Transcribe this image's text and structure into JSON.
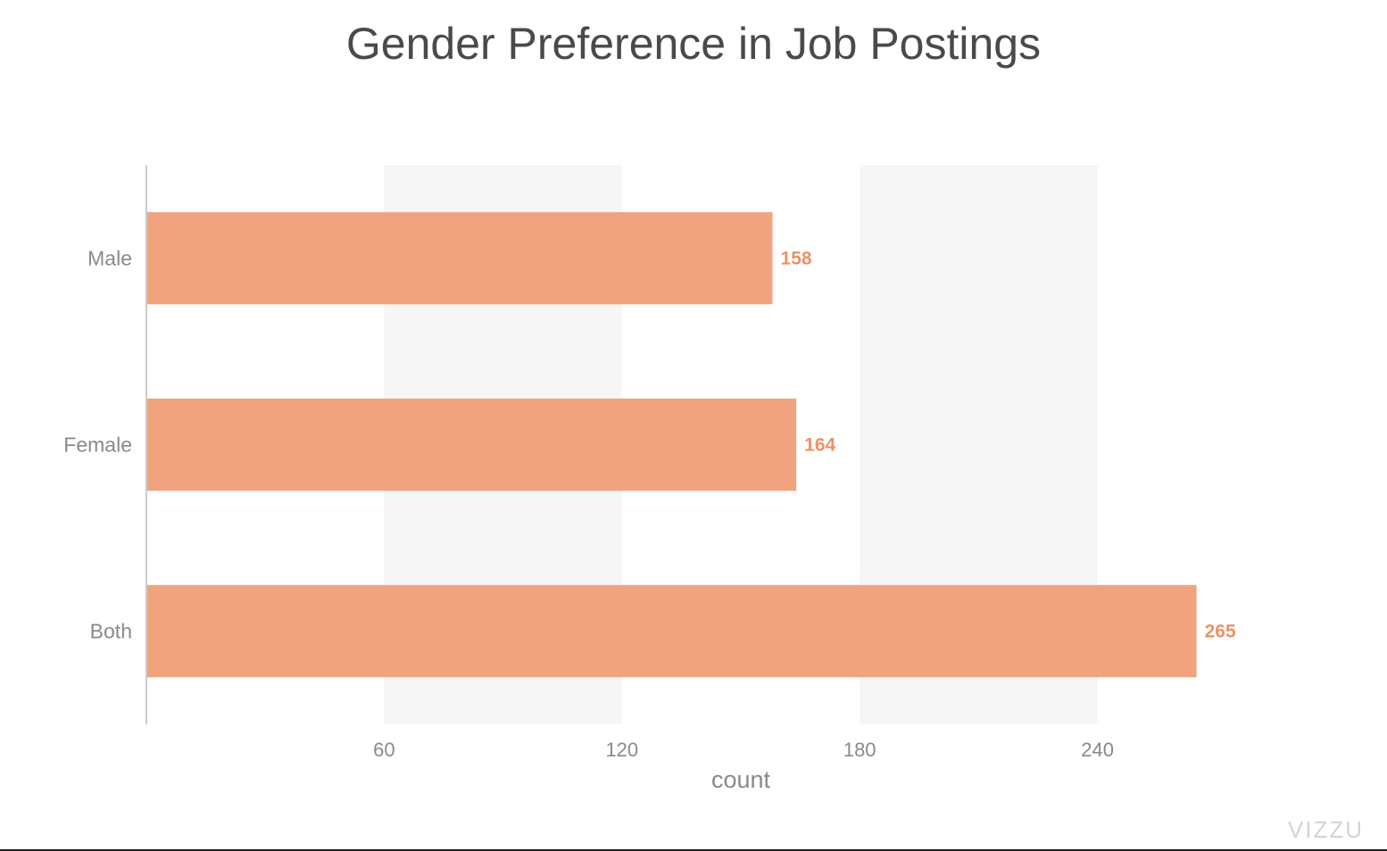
{
  "chart_data": {
    "type": "bar",
    "orientation": "horizontal",
    "title": "Gender Preference in Job Postings",
    "categories": [
      "Male",
      "Female",
      "Both"
    ],
    "values": [
      158,
      164,
      265
    ],
    "data_labels": [
      "158",
      "164",
      "265"
    ],
    "xlabel": "count",
    "ylabel": "",
    "xlim": [
      0,
      300
    ],
    "x_ticks": [
      60,
      120,
      180,
      240
    ],
    "x_tick_labels": [
      "60",
      "120",
      "180",
      "240"
    ],
    "grid": "alternating vertical bands",
    "legend": "none",
    "colors": {
      "bar": "#f1a380",
      "data_label": "#ec9266",
      "band": "#f6f6f6",
      "axis": "#cccccc",
      "tick_label": "#8a8a8a",
      "axis_title": "#8a8a8a"
    }
  },
  "watermark": "VIZZU"
}
